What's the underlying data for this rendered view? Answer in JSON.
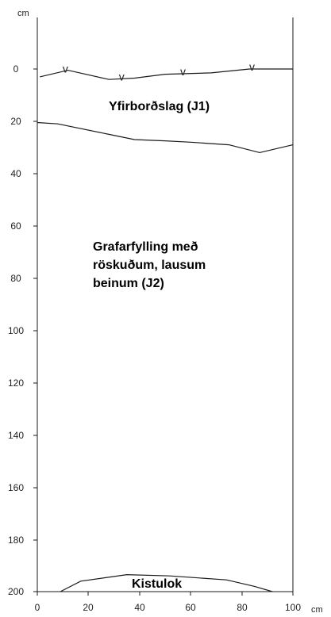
{
  "axes": {
    "y_unit": "cm",
    "x_unit": "cm",
    "y_ticks": [
      "0",
      "20",
      "40",
      "60",
      "80",
      "100",
      "120",
      "140",
      "160",
      "180",
      "200"
    ],
    "x_ticks": [
      "0",
      "20",
      "40",
      "60",
      "80",
      "100"
    ],
    "y_range": [
      -20,
      200
    ],
    "x_range": [
      0,
      100
    ]
  },
  "layers": {
    "j1_label": "Yfirborðslag (J1)",
    "j2_label_lines": [
      "Grafarfylling með",
      "röskuðum, lausum",
      "beinum (J2)"
    ],
    "kistulok_label": "Kistulok"
  },
  "surface_marker": "v",
  "boundaries": {
    "surface": [
      [
        1,
        3
      ],
      [
        12,
        0.5
      ],
      [
        28,
        4
      ],
      [
        38,
        3.5
      ],
      [
        50,
        2
      ],
      [
        68,
        1.5
      ],
      [
        83,
        0
      ],
      [
        100,
        0
      ]
    ],
    "j1_bottom": [
      [
        0,
        20.5
      ],
      [
        8,
        21
      ],
      [
        28,
        25
      ],
      [
        38,
        27
      ],
      [
        50,
        27.5
      ],
      [
        60,
        28
      ],
      [
        75,
        29
      ],
      [
        87,
        32
      ],
      [
        100,
        29
      ]
    ],
    "kistulok": [
      [
        9,
        200
      ],
      [
        17,
        196
      ],
      [
        35,
        193.5
      ],
      [
        52,
        194
      ],
      [
        74,
        195.5
      ],
      [
        85,
        198
      ],
      [
        92,
        200
      ]
    ]
  },
  "surface_marker_x": [
    11,
    33,
    57,
    84
  ],
  "colors": {
    "line": "#1a1a1a",
    "text": "#222222",
    "background": "#ffffff"
  }
}
